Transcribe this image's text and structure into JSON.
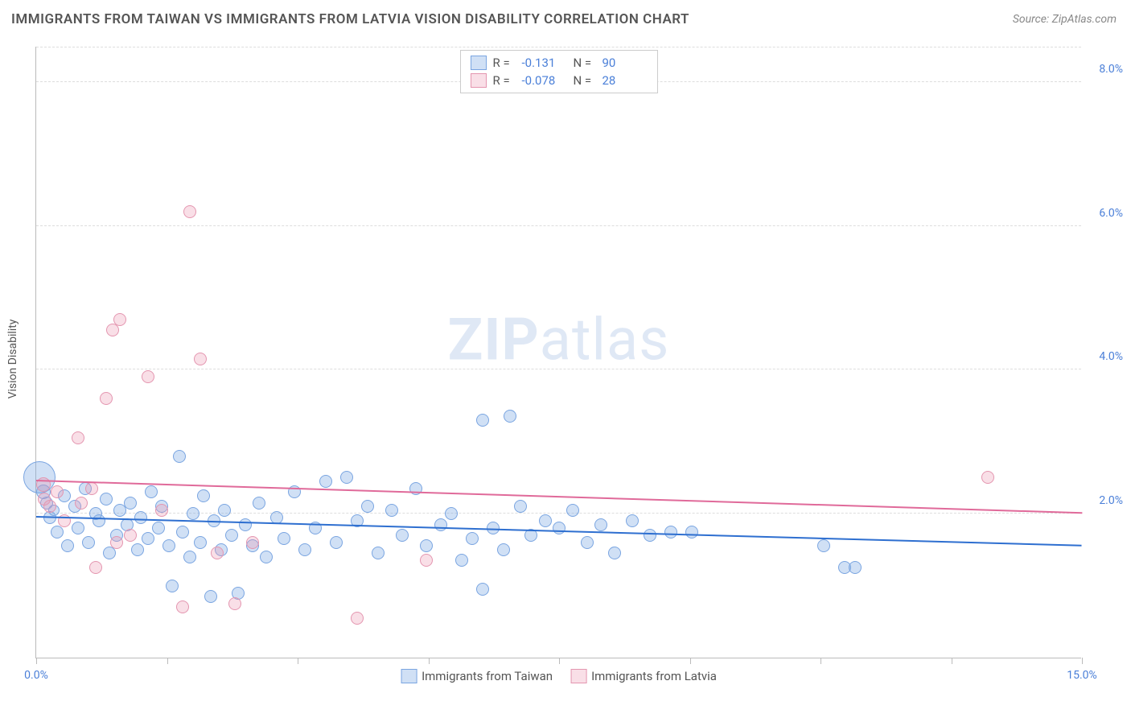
{
  "header": {
    "title": "IMMIGRANTS FROM TAIWAN VS IMMIGRANTS FROM LATVIA VISION DISABILITY CORRELATION CHART",
    "source": "Source: ZipAtlas.com"
  },
  "chart": {
    "type": "scatter",
    "ylabel": "Vision Disability",
    "watermark_a": "ZIP",
    "watermark_b": "atlas",
    "xlim": [
      0,
      15
    ],
    "ylim": [
      0,
      8.5
    ],
    "xticks": [
      0,
      1.875,
      3.75,
      5.625,
      7.5,
      9.375,
      11.25,
      13.125,
      15
    ],
    "xtick_labels": {
      "0": "0.0%",
      "15": "15.0%"
    },
    "yticks": [
      2,
      4,
      6,
      8
    ],
    "ytick_labels": {
      "2": "2.0%",
      "4": "4.0%",
      "6": "6.0%",
      "8": "8.0%"
    },
    "grid_color": "#dddddd",
    "background_color": "#ffffff",
    "series": [
      {
        "name": "Immigrants from Taiwan",
        "fill": "rgba(120,165,225,0.35)",
        "stroke": "#7aa5e1",
        "trend_color": "#2e6fd0",
        "r_label": "R =",
        "r_value": "-0.131",
        "n_label": "N =",
        "n_value": "90",
        "trend": {
          "x1": 0,
          "y1": 1.95,
          "x2": 15,
          "y2": 1.55
        },
        "points": [
          {
            "x": 0.05,
            "y": 2.5,
            "r": 20
          },
          {
            "x": 0.1,
            "y": 2.3,
            "r": 9
          },
          {
            "x": 0.15,
            "y": 2.15,
            "r": 8
          },
          {
            "x": 0.2,
            "y": 1.95,
            "r": 8
          },
          {
            "x": 0.25,
            "y": 2.05,
            "r": 7
          },
          {
            "x": 0.3,
            "y": 1.75,
            "r": 8
          },
          {
            "x": 0.4,
            "y": 2.25,
            "r": 8
          },
          {
            "x": 0.45,
            "y": 1.55,
            "r": 8
          },
          {
            "x": 0.55,
            "y": 2.1,
            "r": 8
          },
          {
            "x": 0.6,
            "y": 1.8,
            "r": 8
          },
          {
            "x": 0.7,
            "y": 2.35,
            "r": 8
          },
          {
            "x": 0.75,
            "y": 1.6,
            "r": 8
          },
          {
            "x": 0.85,
            "y": 2.0,
            "r": 8
          },
          {
            "x": 0.9,
            "y": 1.9,
            "r": 8
          },
          {
            "x": 1.0,
            "y": 2.2,
            "r": 8
          },
          {
            "x": 1.05,
            "y": 1.45,
            "r": 8
          },
          {
            "x": 1.15,
            "y": 1.7,
            "r": 8
          },
          {
            "x": 1.2,
            "y": 2.05,
            "r": 8
          },
          {
            "x": 1.3,
            "y": 1.85,
            "r": 8
          },
          {
            "x": 1.35,
            "y": 2.15,
            "r": 8
          },
          {
            "x": 1.45,
            "y": 1.5,
            "r": 8
          },
          {
            "x": 1.5,
            "y": 1.95,
            "r": 8
          },
          {
            "x": 1.6,
            "y": 1.65,
            "r": 8
          },
          {
            "x": 1.65,
            "y": 2.3,
            "r": 8
          },
          {
            "x": 1.75,
            "y": 1.8,
            "r": 8
          },
          {
            "x": 1.8,
            "y": 2.1,
            "r": 8
          },
          {
            "x": 1.9,
            "y": 1.55,
            "r": 8
          },
          {
            "x": 1.95,
            "y": 1.0,
            "r": 8
          },
          {
            "x": 2.05,
            "y": 2.8,
            "r": 8
          },
          {
            "x": 2.1,
            "y": 1.75,
            "r": 8
          },
          {
            "x": 2.2,
            "y": 1.4,
            "r": 8
          },
          {
            "x": 2.25,
            "y": 2.0,
            "r": 8
          },
          {
            "x": 2.35,
            "y": 1.6,
            "r": 8
          },
          {
            "x": 2.4,
            "y": 2.25,
            "r": 8
          },
          {
            "x": 2.5,
            "y": 0.85,
            "r": 8
          },
          {
            "x": 2.55,
            "y": 1.9,
            "r": 8
          },
          {
            "x": 2.65,
            "y": 1.5,
            "r": 8
          },
          {
            "x": 2.7,
            "y": 2.05,
            "r": 8
          },
          {
            "x": 2.8,
            "y": 1.7,
            "r": 8
          },
          {
            "x": 2.9,
            "y": 0.9,
            "r": 8
          },
          {
            "x": 3.0,
            "y": 1.85,
            "r": 8
          },
          {
            "x": 3.1,
            "y": 1.55,
            "r": 8
          },
          {
            "x": 3.2,
            "y": 2.15,
            "r": 8
          },
          {
            "x": 3.3,
            "y": 1.4,
            "r": 8
          },
          {
            "x": 3.45,
            "y": 1.95,
            "r": 8
          },
          {
            "x": 3.55,
            "y": 1.65,
            "r": 8
          },
          {
            "x": 3.7,
            "y": 2.3,
            "r": 8
          },
          {
            "x": 3.85,
            "y": 1.5,
            "r": 8
          },
          {
            "x": 4.0,
            "y": 1.8,
            "r": 8
          },
          {
            "x": 4.15,
            "y": 2.45,
            "r": 8
          },
          {
            "x": 4.3,
            "y": 1.6,
            "r": 8
          },
          {
            "x": 4.45,
            "y": 2.5,
            "r": 8
          },
          {
            "x": 4.6,
            "y": 1.9,
            "r": 8
          },
          {
            "x": 4.75,
            "y": 2.1,
            "r": 8
          },
          {
            "x": 4.9,
            "y": 1.45,
            "r": 8
          },
          {
            "x": 5.1,
            "y": 2.05,
            "r": 8
          },
          {
            "x": 5.25,
            "y": 1.7,
            "r": 8
          },
          {
            "x": 5.45,
            "y": 2.35,
            "r": 8
          },
          {
            "x": 5.6,
            "y": 1.55,
            "r": 8
          },
          {
            "x": 5.8,
            "y": 1.85,
            "r": 8
          },
          {
            "x": 5.95,
            "y": 2.0,
            "r": 8
          },
          {
            "x": 6.1,
            "y": 1.35,
            "r": 8
          },
          {
            "x": 6.25,
            "y": 1.65,
            "r": 8
          },
          {
            "x": 6.4,
            "y": 0.95,
            "r": 8
          },
          {
            "x": 6.4,
            "y": 3.3,
            "r": 8
          },
          {
            "x": 6.55,
            "y": 1.8,
            "r": 8
          },
          {
            "x": 6.7,
            "y": 1.5,
            "r": 8
          },
          {
            "x": 6.8,
            "y": 3.35,
            "r": 8
          },
          {
            "x": 6.95,
            "y": 2.1,
            "r": 8
          },
          {
            "x": 7.1,
            "y": 1.7,
            "r": 8
          },
          {
            "x": 7.3,
            "y": 1.9,
            "r": 8
          },
          {
            "x": 7.5,
            "y": 1.8,
            "r": 8
          },
          {
            "x": 7.7,
            "y": 2.05,
            "r": 8
          },
          {
            "x": 7.9,
            "y": 1.6,
            "r": 8
          },
          {
            "x": 8.1,
            "y": 1.85,
            "r": 8
          },
          {
            "x": 8.3,
            "y": 1.45,
            "r": 8
          },
          {
            "x": 8.55,
            "y": 1.9,
            "r": 8
          },
          {
            "x": 8.8,
            "y": 1.7,
            "r": 8
          },
          {
            "x": 9.1,
            "y": 1.75,
            "r": 8
          },
          {
            "x": 9.4,
            "y": 1.75,
            "r": 8
          },
          {
            "x": 11.3,
            "y": 1.55,
            "r": 8
          },
          {
            "x": 11.6,
            "y": 1.25,
            "r": 8
          },
          {
            "x": 11.75,
            "y": 1.25,
            "r": 8
          }
        ]
      },
      {
        "name": "Immigrants from Latvia",
        "fill": "rgba(235,150,175,0.30)",
        "stroke": "#e496b0",
        "trend_color": "#e06a9a",
        "r_label": "R =",
        "r_value": "-0.078",
        "n_label": "N =",
        "n_value": "28",
        "trend": {
          "x1": 0,
          "y1": 2.45,
          "x2": 15,
          "y2": 2.0
        },
        "points": [
          {
            "x": 0.1,
            "y": 2.4,
            "r": 9
          },
          {
            "x": 0.12,
            "y": 2.2,
            "r": 8
          },
          {
            "x": 0.2,
            "y": 2.1,
            "r": 8
          },
          {
            "x": 0.3,
            "y": 2.3,
            "r": 8
          },
          {
            "x": 0.4,
            "y": 1.9,
            "r": 8
          },
          {
            "x": 0.6,
            "y": 3.05,
            "r": 8
          },
          {
            "x": 0.65,
            "y": 2.15,
            "r": 8
          },
          {
            "x": 0.8,
            "y": 2.35,
            "r": 8
          },
          {
            "x": 0.85,
            "y": 1.25,
            "r": 8
          },
          {
            "x": 1.0,
            "y": 3.6,
            "r": 8
          },
          {
            "x": 1.1,
            "y": 4.55,
            "r": 8
          },
          {
            "x": 1.15,
            "y": 1.6,
            "r": 8
          },
          {
            "x": 1.2,
            "y": 4.7,
            "r": 8
          },
          {
            "x": 1.35,
            "y": 1.7,
            "r": 8
          },
          {
            "x": 1.6,
            "y": 3.9,
            "r": 8
          },
          {
            "x": 1.8,
            "y": 2.05,
            "r": 8
          },
          {
            "x": 2.1,
            "y": 0.7,
            "r": 8
          },
          {
            "x": 2.2,
            "y": 6.2,
            "r": 8
          },
          {
            "x": 2.35,
            "y": 4.15,
            "r": 8
          },
          {
            "x": 2.6,
            "y": 1.45,
            "r": 8
          },
          {
            "x": 2.85,
            "y": 0.75,
            "r": 8
          },
          {
            "x": 3.1,
            "y": 1.6,
            "r": 8
          },
          {
            "x": 4.6,
            "y": 0.55,
            "r": 8
          },
          {
            "x": 5.6,
            "y": 1.35,
            "r": 8
          },
          {
            "x": 13.65,
            "y": 2.5,
            "r": 8
          }
        ]
      }
    ]
  }
}
